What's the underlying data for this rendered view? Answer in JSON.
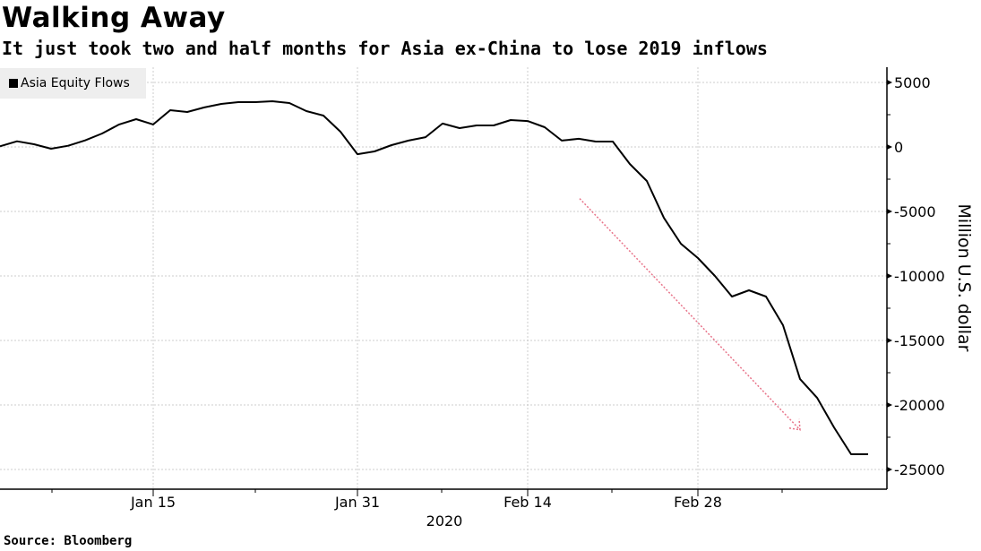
{
  "header": {
    "title": "Walking Away",
    "subtitle": "It just took two and half months for Asia ex-China to lose 2019 inflows"
  },
  "footer": {
    "source": "Source: Bloomberg"
  },
  "colors": {
    "line": "#000000",
    "arrow": "#e8748a",
    "grid": "#cccccc",
    "legend_bg": "#eeeeee"
  },
  "chart_data": {
    "type": "line",
    "title": "Walking Away",
    "subtitle": "It just took two and half months for Asia ex-China to lose 2019 inflows",
    "xlabel": "2020",
    "ylabel": "Million U.S. dollar",
    "ylim": [
      -25000,
      5000
    ],
    "y_ticks": [
      5000,
      0,
      -5000,
      -10000,
      -15000,
      -20000,
      -25000
    ],
    "y_tick_labels": [
      "5000",
      "0",
      "-5000",
      "-10000",
      "-15000",
      "-20000",
      "-25000"
    ],
    "x_tick_labels": [
      {
        "label": "Jan 15",
        "date": "Jan 15"
      },
      {
        "label": "Jan 31",
        "date": "Jan 31"
      },
      {
        "label": "Feb 14",
        "date": "Feb 14"
      },
      {
        "label": "Feb 28",
        "date": "Feb 28"
      }
    ],
    "year_label": "2020",
    "grid": true,
    "legend": {
      "position": "top-left",
      "entries": [
        "Asia Equity Flows"
      ]
    },
    "annotations": [
      {
        "type": "dotted-arrow",
        "from": {
          "date": "Feb 20",
          "value": -4000
        },
        "to": {
          "date": "Mar 10",
          "value": -22000
        }
      }
    ],
    "x": [
      "Jan 2",
      "Jan 3",
      "Jan 6",
      "Jan 7",
      "Jan 8",
      "Jan 9",
      "Jan 10",
      "Jan 13",
      "Jan 14",
      "Jan 15",
      "Jan 16",
      "Jan 17",
      "Jan 20",
      "Jan 21",
      "Jan 22",
      "Jan 23",
      "Jan 24",
      "Jan 27",
      "Jan 28",
      "Jan 29",
      "Jan 30",
      "Jan 31",
      "Feb 3",
      "Feb 4",
      "Feb 5",
      "Feb 6",
      "Feb 7",
      "Feb 10",
      "Feb 11",
      "Feb 12",
      "Feb 13",
      "Feb 14",
      "Feb 17",
      "Feb 18",
      "Feb 19",
      "Feb 20",
      "Feb 21",
      "Feb 24",
      "Feb 25",
      "Feb 26",
      "Feb 27",
      "Feb 28",
      "Mar 2",
      "Mar 3",
      "Mar 4",
      "Mar 5",
      "Mar 6",
      "Mar 9",
      "Mar 10",
      "Mar 11",
      "Mar 12",
      "Mar 13"
    ],
    "series": [
      {
        "name": "Asia Equity Flows",
        "values": [
          50,
          440,
          210,
          -140,
          90,
          510,
          1040,
          1740,
          2150,
          1740,
          2850,
          2710,
          3060,
          3330,
          3470,
          3470,
          3540,
          3400,
          2780,
          2430,
          1180,
          -560,
          -350,
          140,
          490,
          760,
          1810,
          1460,
          1670,
          1670,
          2080,
          2010,
          1530,
          490,
          630,
          420,
          420,
          -1320,
          -2640,
          -5490,
          -7500,
          -8610,
          -10000,
          -11600,
          -11110,
          -11600,
          -13820,
          -17990,
          -19440,
          -21740,
          -23820,
          -23820
        ]
      }
    ]
  }
}
